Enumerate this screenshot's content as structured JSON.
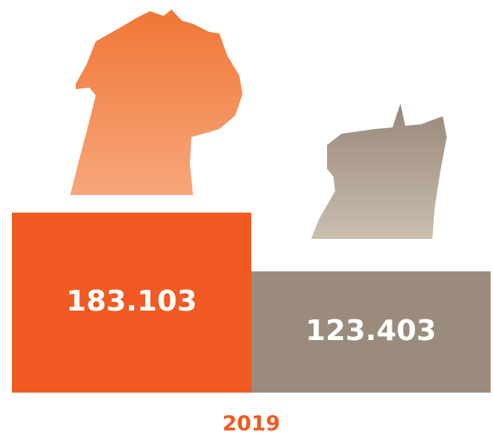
{
  "chart_data": {
    "type": "bar",
    "title": "2019",
    "categories": [
      null,
      null
    ],
    "series": [
      {
        "name": null,
        "colors": [
          "#f15a22",
          "#9a8b7c"
        ],
        "values": [
          183103,
          123403
        ],
        "value_labels": [
          "183.103",
          "123.403"
        ]
      }
    ]
  }
}
